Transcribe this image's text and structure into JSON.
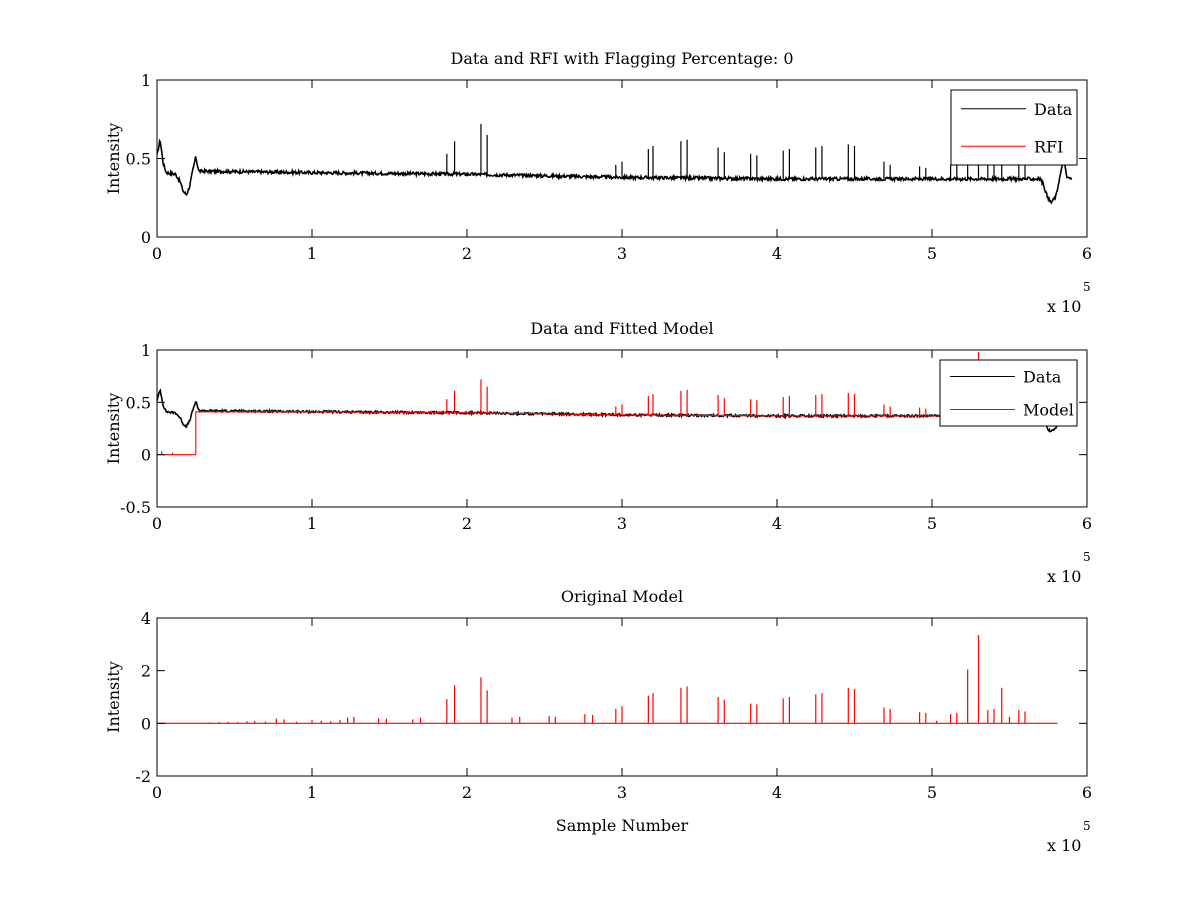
{
  "chart_data": [
    {
      "type": "line",
      "title": "Data and RFI with Flagging Percentage: 0",
      "xlabel": "",
      "ylabel": "Intensity",
      "xlim": [
        0,
        600000
      ],
      "ylim": [
        0,
        1
      ],
      "xticks": [
        0,
        100000,
        200000,
        300000,
        400000,
        500000,
        600000
      ],
      "xtick_labels": [
        "0",
        "1",
        "2",
        "3",
        "4",
        "5",
        "6"
      ],
      "yticks": [
        0,
        0.5,
        1
      ],
      "ytick_labels": [
        "0",
        "0.5",
        "1"
      ],
      "x_multiplier": {
        "base": "x 10",
        "exponent": "5"
      },
      "legend": {
        "position": "top-right",
        "entries": [
          {
            "label": "Data",
            "color": "#000000"
          },
          {
            "label": "RFI",
            "color": "#ff0000"
          }
        ]
      },
      "grid": false,
      "series": [
        {
          "name": "Data",
          "color": "#000000",
          "baseline": [
            [
              0,
              0.52
            ],
            [
              2000,
              0.62
            ],
            [
              4000,
              0.47
            ],
            [
              6000,
              0.41
            ],
            [
              12000,
              0.4
            ],
            [
              15000,
              0.35
            ],
            [
              17000,
              0.29
            ],
            [
              19000,
              0.27
            ],
            [
              21000,
              0.32
            ],
            [
              23000,
              0.42
            ],
            [
              25000,
              0.51
            ],
            [
              27000,
              0.42
            ],
            [
              100000,
              0.41
            ],
            [
              200000,
              0.4
            ],
            [
              300000,
              0.38
            ],
            [
              400000,
              0.37
            ],
            [
              500000,
              0.37
            ],
            [
              570000,
              0.37
            ],
            [
              572000,
              0.33
            ],
            [
              575000,
              0.24
            ],
            [
              577000,
              0.22
            ],
            [
              580000,
              0.26
            ],
            [
              582000,
              0.36
            ],
            [
              584000,
              0.45
            ],
            [
              585000,
              0.49
            ],
            [
              587000,
              0.38
            ],
            [
              590000,
              0.37
            ]
          ],
          "spikes": [
            [
              1000,
              0.58
            ],
            [
              187000,
              0.53
            ],
            [
              192000,
              0.61
            ],
            [
              209000,
              0.72
            ],
            [
              213000,
              0.65
            ],
            [
              296000,
              0.46
            ],
            [
              300000,
              0.48
            ],
            [
              317000,
              0.56
            ],
            [
              320000,
              0.58
            ],
            [
              338000,
              0.61
            ],
            [
              342000,
              0.62
            ],
            [
              362000,
              0.57
            ],
            [
              366000,
              0.54
            ],
            [
              383000,
              0.53
            ],
            [
              387000,
              0.52
            ],
            [
              404000,
              0.55
            ],
            [
              408000,
              0.56
            ],
            [
              425000,
              0.57
            ],
            [
              429000,
              0.58
            ],
            [
              446000,
              0.59
            ],
            [
              450000,
              0.58
            ],
            [
              469000,
              0.48
            ],
            [
              473000,
              0.46
            ],
            [
              492000,
              0.45
            ],
            [
              496000,
              0.44
            ],
            [
              512000,
              0.46
            ],
            [
              516000,
              0.48
            ],
            [
              523000,
              0.62
            ],
            [
              530000,
              0.93
            ],
            [
              536000,
              0.47
            ],
            [
              540000,
              0.49
            ],
            [
              545000,
              0.55
            ],
            [
              556000,
              0.47
            ],
            [
              560000,
              0.46
            ]
          ]
        },
        {
          "name": "RFI",
          "color": "#ff0000",
          "points": []
        }
      ]
    },
    {
      "type": "line",
      "title": "Data and Fitted Model",
      "xlabel": "",
      "ylabel": "Intensity",
      "xlim": [
        0,
        600000
      ],
      "ylim": [
        -0.5,
        1
      ],
      "xticks": [
        0,
        100000,
        200000,
        300000,
        400000,
        500000,
        600000
      ],
      "xtick_labels": [
        "0",
        "1",
        "2",
        "3",
        "4",
        "5",
        "6"
      ],
      "yticks": [
        -0.5,
        0,
        0.5,
        1
      ],
      "ytick_labels": [
        "-0.5",
        "0",
        "0.5",
        "1"
      ],
      "x_multiplier": {
        "base": "x 10",
        "exponent": "5"
      },
      "legend": {
        "position": "top-right",
        "entries": [
          {
            "label": "Data",
            "color": "#000000"
          },
          {
            "label": "Model",
            "color": "#ff0000"
          }
        ]
      },
      "grid": false,
      "series": [
        {
          "name": "Data",
          "color": "#000000",
          "baseline": [
            [
              0,
              0.52
            ],
            [
              2000,
              0.62
            ],
            [
              4000,
              0.47
            ],
            [
              6000,
              0.41
            ],
            [
              12000,
              0.4
            ],
            [
              15000,
              0.35
            ],
            [
              17000,
              0.29
            ],
            [
              19000,
              0.27
            ],
            [
              21000,
              0.32
            ],
            [
              23000,
              0.42
            ],
            [
              25000,
              0.51
            ],
            [
              27000,
              0.42
            ],
            [
              100000,
              0.41
            ],
            [
              200000,
              0.4
            ],
            [
              300000,
              0.38
            ],
            [
              400000,
              0.37
            ],
            [
              500000,
              0.37
            ],
            [
              570000,
              0.37
            ],
            [
              572000,
              0.33
            ],
            [
              575000,
              0.24
            ],
            [
              577000,
              0.22
            ],
            [
              580000,
              0.26
            ],
            [
              582000,
              0.36
            ],
            [
              584000,
              0.45
            ],
            [
              585000,
              0.49
            ],
            [
              587000,
              0.38
            ],
            [
              590000,
              0.37
            ]
          ],
          "spikes": []
        },
        {
          "name": "Model",
          "color": "#ff0000",
          "baseline": [
            [
              0,
              0.0
            ],
            [
              25000,
              0.0
            ],
            [
              25000,
              0.41
            ],
            [
              100000,
              0.41
            ],
            [
              200000,
              0.4
            ],
            [
              300000,
              0.38
            ],
            [
              400000,
              0.37
            ],
            [
              500000,
              0.37
            ],
            [
              550000,
              0.37
            ]
          ],
          "spikes": [
            [
              3000,
              0.03
            ],
            [
              10000,
              0.02
            ],
            [
              187000,
              0.53
            ],
            [
              192000,
              0.61
            ],
            [
              209000,
              0.72
            ],
            [
              213000,
              0.65
            ],
            [
              296000,
              0.46
            ],
            [
              300000,
              0.48
            ],
            [
              317000,
              0.56
            ],
            [
              320000,
              0.58
            ],
            [
              338000,
              0.61
            ],
            [
              342000,
              0.62
            ],
            [
              362000,
              0.57
            ],
            [
              366000,
              0.54
            ],
            [
              383000,
              0.53
            ],
            [
              387000,
              0.52
            ],
            [
              404000,
              0.55
            ],
            [
              408000,
              0.56
            ],
            [
              425000,
              0.57
            ],
            [
              429000,
              0.58
            ],
            [
              446000,
              0.59
            ],
            [
              450000,
              0.58
            ],
            [
              469000,
              0.48
            ],
            [
              473000,
              0.46
            ],
            [
              492000,
              0.45
            ],
            [
              496000,
              0.44
            ],
            [
              523000,
              0.62
            ],
            [
              530000,
              0.98
            ]
          ]
        }
      ]
    },
    {
      "type": "line",
      "title": "Original Model",
      "xlabel": "Sample Number",
      "ylabel": "Intensity",
      "xlim": [
        0,
        600000
      ],
      "ylim": [
        -2,
        4
      ],
      "xticks": [
        0,
        100000,
        200000,
        300000,
        400000,
        500000,
        600000
      ],
      "xtick_labels": [
        "0",
        "1",
        "2",
        "3",
        "4",
        "5",
        "6"
      ],
      "yticks": [
        -2,
        0,
        2,
        4
      ],
      "ytick_labels": [
        "-2",
        "0",
        "2",
        "4"
      ],
      "x_multiplier": {
        "base": "x 10",
        "exponent": "5"
      },
      "legend": null,
      "grid": false,
      "series": [
        {
          "color": "#ff0000",
          "baseline": [
            [
              0,
              0.0
            ],
            [
              581000,
              0.0
            ]
          ],
          "spikes": [
            [
              29000,
              0.03
            ],
            [
              34000,
              0.04
            ],
            [
              40000,
              0.05
            ],
            [
              46000,
              0.06
            ],
            [
              52000,
              0.05
            ],
            [
              58000,
              0.08
            ],
            [
              63000,
              0.09
            ],
            [
              70000,
              0.07
            ],
            [
              77000,
              0.18
            ],
            [
              82000,
              0.15
            ],
            [
              90000,
              0.06
            ],
            [
              100000,
              0.12
            ],
            [
              106000,
              0.1
            ],
            [
              112000,
              0.08
            ],
            [
              118000,
              0.12
            ],
            [
              123000,
              0.22
            ],
            [
              127000,
              0.25
            ],
            [
              143000,
              0.2
            ],
            [
              148000,
              0.18
            ],
            [
              165000,
              0.15
            ],
            [
              170000,
              0.22
            ],
            [
              187000,
              0.92
            ],
            [
              192000,
              1.45
            ],
            [
              209000,
              1.75
            ],
            [
              213000,
              1.25
            ],
            [
              229000,
              0.22
            ],
            [
              234000,
              0.25
            ],
            [
              253000,
              0.28
            ],
            [
              257000,
              0.25
            ],
            [
              276000,
              0.35
            ],
            [
              281000,
              0.32
            ],
            [
              296000,
              0.55
            ],
            [
              300000,
              0.65
            ],
            [
              317000,
              1.05
            ],
            [
              320000,
              1.15
            ],
            [
              338000,
              1.35
            ],
            [
              342000,
              1.4
            ],
            [
              362000,
              1.0
            ],
            [
              366000,
              0.9
            ],
            [
              383000,
              0.75
            ],
            [
              387000,
              0.72
            ],
            [
              404000,
              0.95
            ],
            [
              408000,
              1.0
            ],
            [
              425000,
              1.1
            ],
            [
              429000,
              1.15
            ],
            [
              446000,
              1.35
            ],
            [
              450000,
              1.3
            ],
            [
              469000,
              0.6
            ],
            [
              473000,
              0.55
            ],
            [
              492000,
              0.42
            ],
            [
              496000,
              0.4
            ],
            [
              503000,
              0.1
            ],
            [
              512000,
              0.35
            ],
            [
              516000,
              0.4
            ],
            [
              523000,
              2.05
            ],
            [
              530000,
              3.35
            ],
            [
              536000,
              0.5
            ],
            [
              540000,
              0.55
            ],
            [
              545000,
              1.35
            ],
            [
              550000,
              0.25
            ],
            [
              556000,
              0.5
            ],
            [
              560000,
              0.45
            ]
          ]
        }
      ]
    }
  ]
}
